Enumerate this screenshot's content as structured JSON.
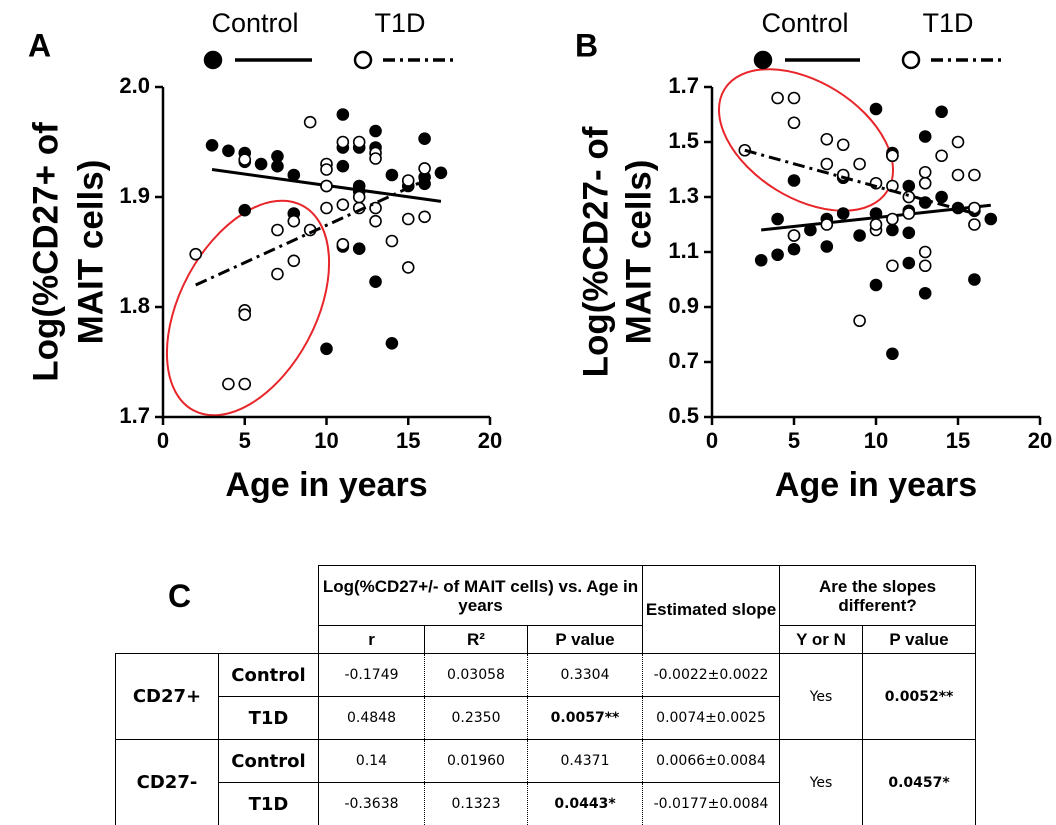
{
  "chart_data": [
    {
      "type": "scatter",
      "panel_label": "A",
      "y_label": [
        "Log(%CD27+ of",
        "MAIT cells)"
      ],
      "x_label": "Age in years",
      "xlim": [
        0,
        20
      ],
      "xticks": [
        0,
        5,
        10,
        15,
        20
      ],
      "ylim": [
        1.7,
        2.0
      ],
      "yticks": [
        1.7,
        1.8,
        1.9,
        {
          "value": 2.0,
          "label": "2.0"
        }
      ],
      "series": [
        {
          "name": "Control",
          "color": "#000000",
          "marker": "filled",
          "line_style": "solid",
          "x": [
            3,
            4,
            5,
            5,
            5,
            6,
            7,
            7,
            8,
            8,
            10,
            11,
            11,
            11,
            11,
            12,
            12,
            12,
            13,
            13,
            13,
            14,
            14,
            15,
            16,
            16,
            16,
            17,
            12,
            10
          ],
          "values": [
            1.947,
            1.942,
            1.94,
            1.932,
            1.888,
            1.93,
            1.937,
            1.928,
            1.92,
            1.885,
            1.762,
            1.975,
            1.945,
            1.928,
            1.855,
            1.945,
            1.91,
            1.853,
            1.96,
            1.945,
            1.823,
            1.767,
            1.92,
            1.91,
            1.953,
            1.918,
            1.912,
            1.922,
            1.905,
            1.91
          ],
          "fit_x": [
            3,
            17
          ],
          "fit_y": [
            1.925,
            1.896
          ]
        },
        {
          "name": "T1D",
          "color": "#000000",
          "marker": "open",
          "line_style": "dashdot",
          "x": [
            2,
            4,
            5,
            5,
            5,
            7,
            7,
            8,
            8,
            9,
            9,
            10,
            10,
            10,
            10,
            11,
            11,
            11,
            12,
            12,
            12,
            13,
            13,
            13,
            13,
            14,
            15,
            15,
            15,
            16,
            16,
            5
          ],
          "values": [
            1.848,
            1.73,
            1.73,
            1.797,
            1.793,
            1.87,
            1.83,
            1.878,
            1.842,
            1.968,
            1.87,
            1.93,
            1.925,
            1.89,
            1.91,
            1.95,
            1.893,
            1.857,
            1.95,
            1.89,
            1.9,
            1.94,
            1.935,
            1.878,
            1.89,
            1.86,
            1.915,
            1.88,
            1.836,
            1.926,
            1.882,
            1.934
          ],
          "fit_x": [
            2,
            16
          ],
          "fit_y": [
            1.82,
            1.915
          ]
        }
      ]
    },
    {
      "type": "scatter",
      "panel_label": "B",
      "y_label": [
        "Log(%CD27- of",
        "MAIT cells)"
      ],
      "x_label": "Age in years",
      "xlim": [
        0,
        20
      ],
      "xticks": [
        0,
        5,
        10,
        15,
        20
      ],
      "ylim": [
        0.5,
        1.7
      ],
      "yticks": [
        0.5,
        0.7,
        0.9,
        1.1,
        1.3,
        1.5,
        1.7
      ],
      "series": [
        {
          "name": "Control",
          "color": "#000000",
          "marker": "filled",
          "line_style": "solid",
          "x": [
            3,
            4,
            4,
            5,
            5,
            5,
            6,
            7,
            7,
            8,
            8,
            10,
            10,
            10,
            11,
            11,
            11,
            11,
            12,
            12,
            12,
            13,
            13,
            13,
            14,
            14,
            15,
            16,
            16,
            17,
            12,
            9
          ],
          "values": [
            1.07,
            1.22,
            1.09,
            1.36,
            1.16,
            1.11,
            1.18,
            1.22,
            1.12,
            1.37,
            1.24,
            1.62,
            1.24,
            0.98,
            1.46,
            1.45,
            1.18,
            0.73,
            1.34,
            1.25,
            1.06,
            1.52,
            1.28,
            0.95,
            1.61,
            1.3,
            1.26,
            1.25,
            1.0,
            1.22,
            1.17,
            1.16
          ],
          "fit_x": [
            3,
            17
          ],
          "fit_y": [
            1.18,
            1.27
          ]
        },
        {
          "name": "T1D",
          "color": "#000000",
          "marker": "open",
          "line_style": "dashdot",
          "x": [
            2,
            4,
            5,
            5,
            5,
            7,
            7,
            7,
            8,
            8,
            9,
            9,
            10,
            10,
            10,
            11,
            11,
            11,
            11,
            12,
            12,
            13,
            13,
            13,
            13,
            14,
            15,
            15,
            16,
            16,
            16
          ],
          "values": [
            1.47,
            1.66,
            1.66,
            1.57,
            1.16,
            1.51,
            1.42,
            1.2,
            1.49,
            1.38,
            1.42,
            0.85,
            1.35,
            1.18,
            1.2,
            1.45,
            1.34,
            1.22,
            1.05,
            1.3,
            1.24,
            1.39,
            1.35,
            1.1,
            1.05,
            1.45,
            1.5,
            1.38,
            1.38,
            1.26,
            1.2
          ],
          "fit_x": [
            2,
            16
          ],
          "fit_y": [
            1.47,
            1.24
          ]
        }
      ]
    }
  ],
  "table": {
    "panel_label": "C",
    "header": {
      "group_title": "Log(%CD27+/- of MAIT cells) vs. Age in years",
      "columns": [
        "r",
        "R²",
        "P value"
      ],
      "slope_title": "Estimated slope",
      "diff_title": "Are the slopes different?",
      "diff_columns": [
        "Y or N",
        "P value"
      ]
    },
    "groups": [
      {
        "label": "CD27+",
        "rows": [
          {
            "label": "Control",
            "cells": [
              "-0.1749",
              "0.03058",
              "0.3304",
              "-0.0022±0.0022"
            ]
          },
          {
            "label": "T1D",
            "cells": [
              "0.4848",
              "0.2350",
              "0.0057**",
              "0.0074±0.0025"
            ]
          }
        ],
        "different": "Yes",
        "p_value": "0.0052**"
      },
      {
        "label": "CD27-",
        "rows": [
          {
            "label": "Control",
            "cells": [
              "0.14",
              "0.01960",
              "0.4371",
              "0.0066±0.0084"
            ]
          },
          {
            "label": "T1D",
            "cells": [
              "-0.3638",
              "0.1323",
              "0.0443*",
              "-0.0177±0.0084"
            ]
          }
        ],
        "different": "Yes",
        "p_value": "0.0457*"
      }
    ]
  }
}
